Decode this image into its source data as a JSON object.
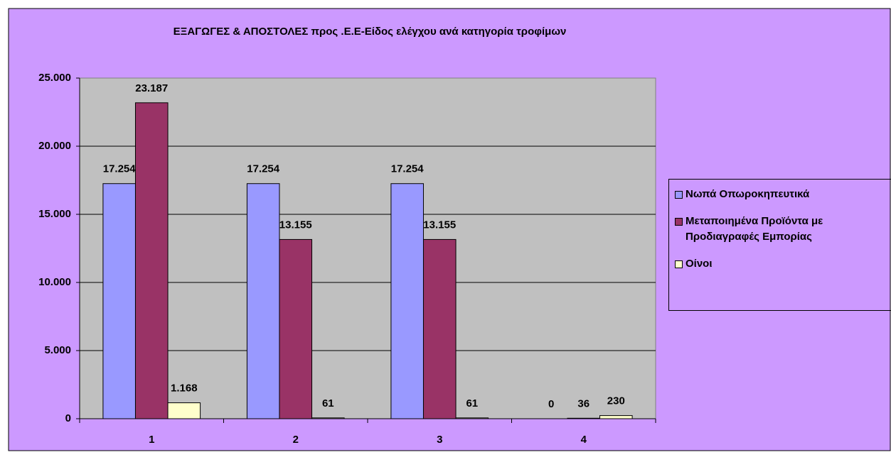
{
  "chart_data": {
    "type": "bar",
    "title": "ΕΞΑΓΩΓΕΣ & ΑΠΟΣΤΟΛΕΣ προς .Ε.Ε-Είδος ελέγχου ανά κατηγορία τροφίμων",
    "categories": [
      "1",
      "2",
      "3",
      "4"
    ],
    "series": [
      {
        "name": "Νωπά Οπωροκηπευτικά",
        "color": "#9999ff",
        "values": [
          17254,
          17254,
          17254,
          0
        ],
        "value_labels": [
          "17.254",
          "17.254",
          "17.254",
          "0"
        ]
      },
      {
        "name": "Μεταποιημένα Προϊόντα με Προδιαγραφές Εμπορίας",
        "color": "#993366",
        "values": [
          23187,
          13155,
          13155,
          36
        ],
        "value_labels": [
          "23.187",
          "13.155",
          "13.155",
          "36"
        ]
      },
      {
        "name": "Οίνοι",
        "color": "#ffffcc",
        "values": [
          1168,
          61,
          61,
          230
        ],
        "value_labels": [
          "1.168",
          "61",
          "61",
          "230"
        ]
      }
    ],
    "ylim": [
      0,
      25000
    ],
    "yticks": [
      0,
      {
        "value": 5000,
        "label": "5.000"
      },
      {
        "value": 10000,
        "label": "10.000"
      },
      {
        "value": 15000,
        "label": "15.000"
      },
      {
        "value": 20000,
        "label": "20.000"
      },
      {
        "value": 25000,
        "label": "25.000"
      }
    ],
    "grid": true,
    "legend": "right"
  }
}
